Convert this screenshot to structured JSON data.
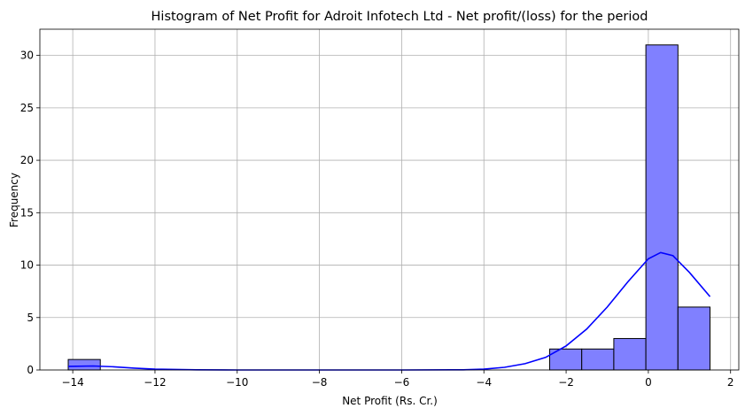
{
  "chart_data": {
    "type": "bar",
    "title": "Histogram of Net Profit for Adroit Infotech Ltd - Net profit/(loss) for the period",
    "xlabel": "Net Profit (Rs. Cr.)",
    "ylabel": "Frequency",
    "xlim": [
      -14.8,
      2.2
    ],
    "ylim": [
      0,
      32.5
    ],
    "xticks": [
      -14,
      -12,
      -10,
      -8,
      -6,
      -4,
      -2,
      0,
      2
    ],
    "yticks": [
      0,
      5,
      10,
      15,
      20,
      25,
      30
    ],
    "grid": true,
    "bar_color": "#8080ff",
    "bar_edge_color": "#000000",
    "kde_color": "#0000ff",
    "bins": [
      {
        "x0": -14.11,
        "x1": -13.33,
        "count": 1
      },
      {
        "x0": -2.4,
        "x1": -1.62,
        "count": 2
      },
      {
        "x0": -1.62,
        "x1": -0.84,
        "count": 2
      },
      {
        "x0": -0.84,
        "x1": -0.06,
        "count": 3
      },
      {
        "x0": -0.06,
        "x1": 0.72,
        "count": 31
      },
      {
        "x0": 0.72,
        "x1": 1.5,
        "count": 6
      }
    ],
    "kde": {
      "x": [
        -14.11,
        -13.5,
        -13.0,
        -12.5,
        -12.0,
        -11.0,
        -10.0,
        -8.0,
        -6.0,
        -4.5,
        -4.0,
        -3.5,
        -3.0,
        -2.5,
        -2.0,
        -1.5,
        -1.0,
        -0.5,
        0.0,
        0.3,
        0.6,
        1.0,
        1.5
      ],
      "y": [
        0.35,
        0.38,
        0.3,
        0.18,
        0.08,
        0.02,
        0.0,
        0.0,
        0.0,
        0.02,
        0.08,
        0.25,
        0.6,
        1.2,
        2.3,
        3.9,
        6.0,
        8.4,
        10.6,
        11.2,
        10.9,
        9.3,
        7.0
      ]
    }
  }
}
